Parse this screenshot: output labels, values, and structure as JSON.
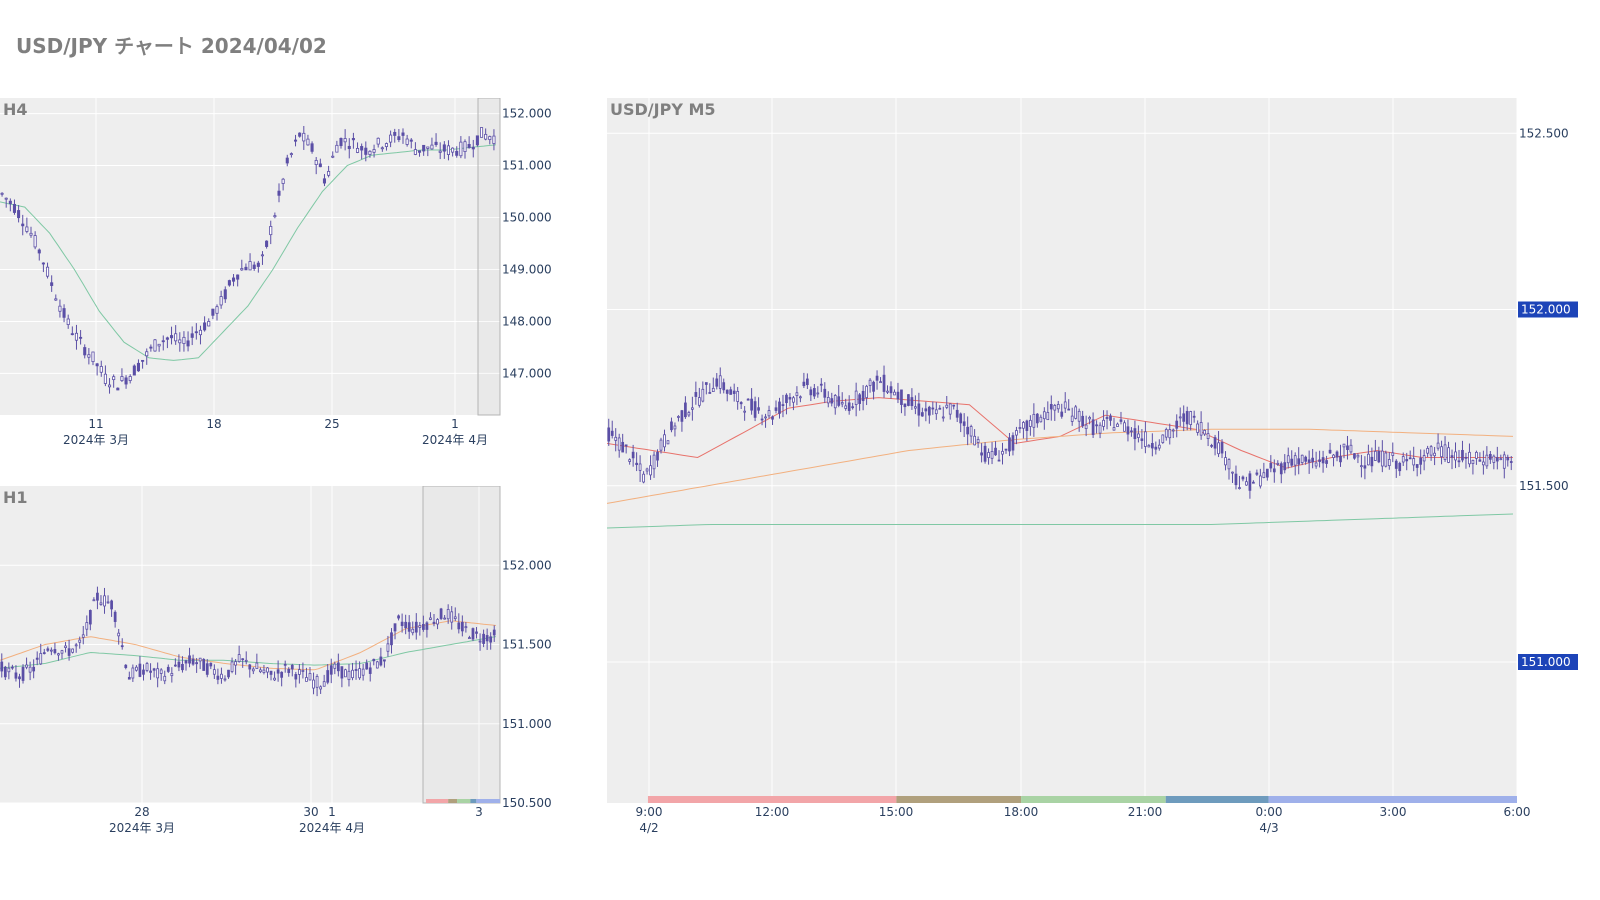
{
  "page": {
    "title": "USD/JPY チャート 2024/04/02"
  },
  "colors": {
    "plot_bg": "#eeeeee",
    "grid": "#ffffff",
    "candle": "#5b4fa6",
    "ma_green": "#7fc8a4",
    "ma_orange": "#f2b07f",
    "ma_red": "#e8726b",
    "badge": "#1d44b8",
    "tick_text": "#2a3f5f"
  },
  "chart_data": [
    {
      "id": "h4",
      "type": "candlestick",
      "title": "H4",
      "ylim": [
        146.2,
        152.3
      ],
      "yticks": [
        "152.000",
        "151.000",
        "150.000",
        "149.000",
        "148.000",
        "147.000"
      ],
      "ytick_values": [
        152,
        151,
        150,
        149,
        148,
        147
      ],
      "xticks": [
        {
          "label": "11",
          "sub": "2024年 3月"
        },
        {
          "label": "18",
          "sub": ""
        },
        {
          "label": "25",
          "sub": ""
        },
        {
          "label": "1",
          "sub": "2024年 4月"
        }
      ],
      "candles": 120,
      "close_path": [
        150.45,
        150.2,
        149.8,
        149.3,
        148.6,
        148.0,
        147.6,
        147.3,
        146.9,
        146.8,
        147.0,
        147.3,
        147.6,
        147.7,
        147.55,
        147.8,
        148.0,
        148.4,
        148.9,
        149.1,
        149.05,
        150.0,
        151.0,
        151.6,
        151.3,
        150.7,
        151.5,
        151.45,
        151.3,
        151.4,
        151.5,
        151.6,
        151.3,
        151.35,
        151.3,
        151.3,
        151.35,
        151.6,
        151.55
      ],
      "ma": [
        {
          "color": "ma_green",
          "values": [
            150.3,
            150.2,
            149.7,
            149.0,
            148.2,
            147.6,
            147.3,
            147.25,
            147.3,
            147.8,
            148.3,
            149.0,
            149.8,
            150.5,
            151.0,
            151.2,
            151.25,
            151.3,
            151.3,
            151.35,
            151.4
          ]
        }
      ],
      "highlight": "current-session"
    },
    {
      "id": "h1",
      "type": "candlestick",
      "title": "H1",
      "ylim": [
        150.5,
        152.5
      ],
      "yticks": [
        "152.000",
        "151.500",
        "151.000",
        "150.500"
      ],
      "ytick_values": [
        152.0,
        151.5,
        151.0,
        150.5
      ],
      "xticks": [
        {
          "label": "28",
          "sub": "2024年 3月"
        },
        {
          "label": "30",
          "sub": ""
        },
        {
          "label": "1",
          "sub": "2024年 4月"
        },
        {
          "label": "3",
          "sub": ""
        }
      ],
      "candles": 140,
      "close_path": [
        151.35,
        151.3,
        151.35,
        151.5,
        151.45,
        151.5,
        151.8,
        151.75,
        151.3,
        151.35,
        151.3,
        151.35,
        151.4,
        151.35,
        151.3,
        151.4,
        151.35,
        151.3,
        151.35,
        151.3,
        151.25,
        151.35,
        151.3,
        151.35,
        151.4,
        151.65,
        151.6,
        151.65,
        151.7,
        151.6,
        151.55,
        151.55
      ],
      "ma": [
        {
          "color": "ma_green",
          "values": [
            151.35,
            151.38,
            151.45,
            151.43,
            151.4,
            151.4,
            151.38,
            151.37,
            151.38,
            151.45,
            151.5,
            151.55
          ]
        },
        {
          "color": "ma_orange",
          "values": [
            151.4,
            151.5,
            151.55,
            151.5,
            151.42,
            151.38,
            151.35,
            151.34,
            151.45,
            151.6,
            151.65,
            151.62
          ]
        }
      ],
      "highlight": "current-session"
    },
    {
      "id": "m5",
      "type": "candlestick",
      "title": "USD/JPY M5",
      "ylim": [
        150.6,
        152.6
      ],
      "yticks": [
        "152.500",
        "151.500"
      ],
      "ytick_values": [
        152.5,
        151.5
      ],
      "badges": [
        "152.000",
        "151.000"
      ],
      "badge_values": [
        152.0,
        151.0
      ],
      "xticks": [
        {
          "label": "9:00",
          "sub": "4/2"
        },
        {
          "label": "12:00",
          "sub": ""
        },
        {
          "label": "15:00",
          "sub": ""
        },
        {
          "label": "18:00",
          "sub": ""
        },
        {
          "label": "21:00",
          "sub": ""
        },
        {
          "label": "0:00",
          "sub": "4/3"
        },
        {
          "label": "3:00",
          "sub": ""
        },
        {
          "label": "6:00",
          "sub": ""
        }
      ],
      "candles": 260,
      "close_path": [
        151.65,
        151.6,
        151.52,
        151.62,
        151.7,
        151.75,
        151.8,
        151.75,
        151.72,
        151.7,
        151.75,
        151.78,
        151.76,
        151.72,
        151.76,
        151.8,
        151.76,
        151.72,
        151.7,
        151.72,
        151.66,
        151.58,
        151.6,
        151.66,
        151.7,
        151.72,
        151.7,
        151.66,
        151.68,
        151.66,
        151.62,
        151.64,
        151.7,
        151.66,
        151.6,
        151.5,
        151.52,
        151.55,
        151.58,
        151.56,
        151.58,
        151.6,
        151.57,
        151.58,
        151.56,
        151.58,
        151.6,
        151.58,
        151.57,
        151.58,
        151.56
      ],
      "ma": [
        {
          "color": "ma_red",
          "values": [
            151.62,
            151.6,
            151.58,
            151.65,
            151.72,
            151.74,
            151.75,
            151.74,
            151.73,
            151.62,
            151.64,
            151.7,
            151.68,
            151.66,
            151.6,
            151.55,
            151.58,
            151.6,
            151.58,
            151.58,
            151.58
          ]
        },
        {
          "color": "ma_orange",
          "values": [
            151.45,
            151.5,
            151.55,
            151.6,
            151.63,
            151.65,
            151.66,
            151.66,
            151.65,
            151.64
          ]
        },
        {
          "color": "ma_green",
          "values": [
            151.38,
            151.39,
            151.39,
            151.39,
            151.39,
            151.39,
            151.39,
            151.4,
            151.41,
            151.42
          ]
        }
      ],
      "sessions": [
        {
          "color": "#f2a5a8",
          "from": 0.045,
          "to": 0.318
        },
        {
          "color": "#b0a07d",
          "from": 0.318,
          "to": 0.455
        },
        {
          "color": "#a9d3a4",
          "from": 0.455,
          "to": 0.614
        },
        {
          "color": "#6e9bbd",
          "from": 0.614,
          "to": 0.727
        },
        {
          "color": "#9fb0ea",
          "from": 0.727,
          "to": 1.0
        }
      ]
    }
  ]
}
